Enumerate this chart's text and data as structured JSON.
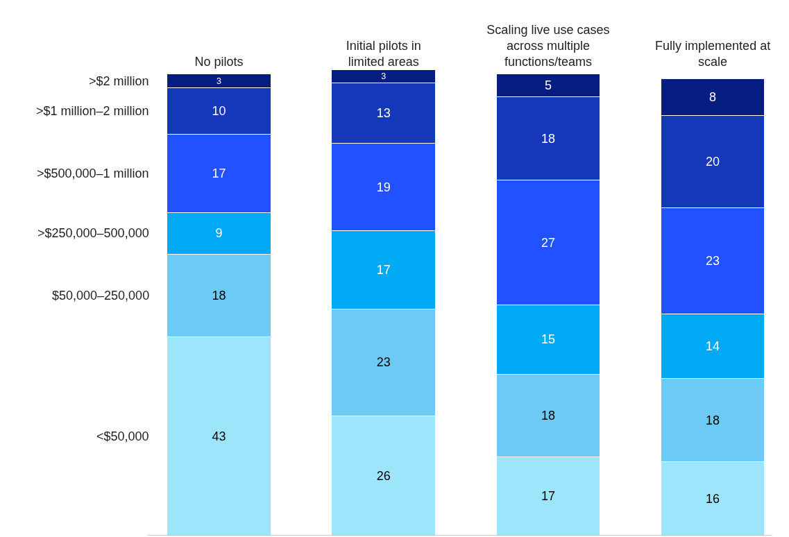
{
  "chart_data": {
    "type": "bar",
    "stacked": true,
    "data_labels": true,
    "legend": false,
    "tick_labels": "x",
    "categories": [
      "No pilots",
      "Initial pilots in limited areas",
      "Scaling live use cases across multiple functions/teams",
      "Fully implemented at scale"
    ],
    "series": [
      {
        "name": "<$50,000",
        "color": "#9ce5fb",
        "values": [
          43,
          26,
          17,
          16
        ]
      },
      {
        "name": "$50,000–250,000",
        "color": "#6ccaf5",
        "values": [
          18,
          23,
          18,
          18
        ]
      },
      {
        "name": ">$250,000–500,000",
        "color": "#00a9f4",
        "values": [
          9,
          17,
          15,
          14
        ]
      },
      {
        "name": ">$500,000–1 million",
        "color": "#2251ff",
        "values": [
          17,
          19,
          27,
          23
        ]
      },
      {
        "name": ">$1 million–2 million",
        "color": "#1537ba",
        "values": [
          10,
          13,
          18,
          20
        ]
      },
      {
        "name": ">$2 million",
        "color": "#051c80",
        "values": [
          3,
          3,
          5,
          8
        ]
      }
    ]
  }
}
